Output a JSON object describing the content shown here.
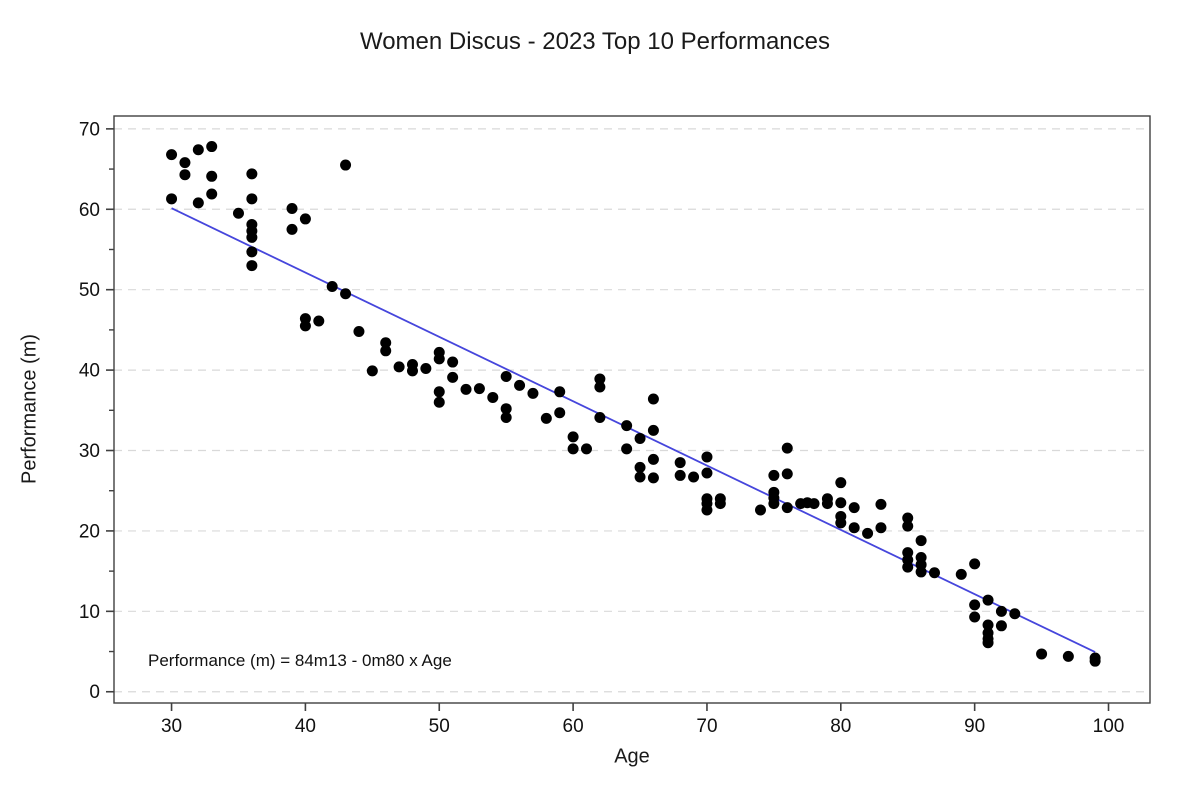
{
  "chart_data": {
    "type": "scatter",
    "title": "Women Discus - 2023 Top 10 Performances",
    "xlabel": "Age",
    "ylabel": "Performance (m)",
    "annotation": "Performance (m) =  84m13 - 0m80 x Age",
    "x_ticks": [
      30,
      40,
      50,
      60,
      70,
      80,
      90,
      100
    ],
    "y_ticks": [
      0,
      10,
      20,
      30,
      40,
      50,
      60,
      70
    ],
    "y_minor_ticks": [
      5,
      15,
      25,
      35,
      45,
      55,
      65
    ],
    "xlim": [
      25.7,
      103.1
    ],
    "ylim": [
      -1.4,
      71.6
    ],
    "grid": "horizontal-dashed",
    "legend": "none",
    "colors": {
      "points": "#000000",
      "trend_line": "#4646dc",
      "gridline": "#d9d9d9",
      "axis": "#404040",
      "text": "#111111"
    },
    "trend": {
      "type": "linear",
      "intercept": 84.13,
      "slope": -0.8,
      "x_start": 30,
      "x_end": 99
    },
    "points": [
      [
        30,
        66.8
      ],
      [
        30,
        61.3
      ],
      [
        31,
        65.8
      ],
      [
        31,
        64.3
      ],
      [
        32,
        67.4
      ],
      [
        32,
        60.8
      ],
      [
        33,
        67.8
      ],
      [
        33,
        64.1
      ],
      [
        33,
        61.9
      ],
      [
        35,
        59.5
      ],
      [
        36,
        64.4
      ],
      [
        36,
        61.3
      ],
      [
        36,
        58.1
      ],
      [
        36,
        57.3
      ],
      [
        36,
        56.5
      ],
      [
        36,
        54.7
      ],
      [
        36,
        53.0
      ],
      [
        39,
        60.1
      ],
      [
        39,
        57.5
      ],
      [
        40,
        58.8
      ],
      [
        40,
        46.4
      ],
      [
        40,
        45.5
      ],
      [
        41,
        46.1
      ],
      [
        42,
        50.4
      ],
      [
        43,
        65.5
      ],
      [
        43,
        49.5
      ],
      [
        44,
        44.8
      ],
      [
        45,
        39.9
      ],
      [
        46,
        43.4
      ],
      [
        46,
        42.4
      ],
      [
        47,
        40.4
      ],
      [
        48,
        40.7
      ],
      [
        48,
        39.9
      ],
      [
        49,
        40.2
      ],
      [
        50,
        42.2
      ],
      [
        50,
        41.4
      ],
      [
        50,
        37.3
      ],
      [
        50,
        36.0
      ],
      [
        51,
        41.0
      ],
      [
        51,
        39.1
      ],
      [
        52,
        37.6
      ],
      [
        53,
        37.7
      ],
      [
        54,
        36.6
      ],
      [
        55,
        39.2
      ],
      [
        55,
        35.2
      ],
      [
        55,
        34.1
      ],
      [
        56,
        38.1
      ],
      [
        57,
        37.1
      ],
      [
        58,
        34.0
      ],
      [
        59,
        37.3
      ],
      [
        59,
        34.7
      ],
      [
        60,
        31.7
      ],
      [
        60,
        30.2
      ],
      [
        61,
        30.2
      ],
      [
        62,
        38.9
      ],
      [
        62,
        37.9
      ],
      [
        62,
        34.1
      ],
      [
        64,
        33.1
      ],
      [
        64,
        30.2
      ],
      [
        65,
        31.5
      ],
      [
        65,
        27.9
      ],
      [
        65,
        26.7
      ],
      [
        66,
        36.4
      ],
      [
        66,
        32.5
      ],
      [
        66,
        28.9
      ],
      [
        66,
        26.6
      ],
      [
        68,
        28.5
      ],
      [
        68,
        26.9
      ],
      [
        69,
        26.7
      ],
      [
        70,
        29.2
      ],
      [
        70,
        27.2
      ],
      [
        70,
        24.0
      ],
      [
        70,
        23.4
      ],
      [
        70,
        22.6
      ],
      [
        71,
        24.0
      ],
      [
        71,
        23.4
      ],
      [
        74,
        22.6
      ],
      [
        75,
        26.9
      ],
      [
        75,
        24.8
      ],
      [
        75,
        24.1
      ],
      [
        75,
        23.4
      ],
      [
        76,
        30.3
      ],
      [
        76,
        27.1
      ],
      [
        76,
        22.9
      ],
      [
        77,
        23.4
      ],
      [
        77.5,
        23.5
      ],
      [
        78,
        23.4
      ],
      [
        79,
        24.0
      ],
      [
        79,
        23.4
      ],
      [
        80,
        26.0
      ],
      [
        80,
        23.5
      ],
      [
        80,
        21.8
      ],
      [
        80,
        21.0
      ],
      [
        81,
        22.9
      ],
      [
        81,
        20.4
      ],
      [
        82,
        19.7
      ],
      [
        83,
        23.3
      ],
      [
        83,
        20.4
      ],
      [
        85,
        21.6
      ],
      [
        85,
        20.6
      ],
      [
        85,
        17.3
      ],
      [
        85,
        16.4
      ],
      [
        85,
        15.5
      ],
      [
        86,
        18.8
      ],
      [
        86,
        16.7
      ],
      [
        86,
        15.8
      ],
      [
        86,
        14.9
      ],
      [
        87,
        14.8
      ],
      [
        89,
        14.6
      ],
      [
        90,
        15.9
      ],
      [
        90,
        10.8
      ],
      [
        90,
        9.3
      ],
      [
        91,
        11.4
      ],
      [
        91,
        8.3
      ],
      [
        91,
        7.3
      ],
      [
        91,
        6.6
      ],
      [
        91,
        6.1
      ],
      [
        92,
        10.0
      ],
      [
        92,
        8.2
      ],
      [
        93,
        9.7
      ],
      [
        95,
        4.7
      ],
      [
        97,
        4.4
      ],
      [
        99,
        4.2
      ],
      [
        99,
        3.8
      ]
    ]
  }
}
